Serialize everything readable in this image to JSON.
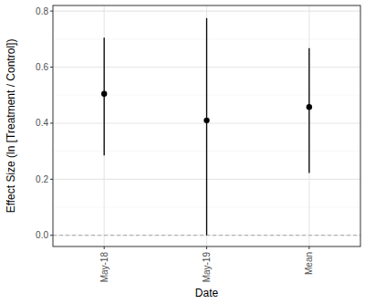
{
  "chart_data": {
    "type": "scatter",
    "x_label": "Date",
    "y_label": "Effect Size (ln [Treatment / Control])",
    "categories": [
      "May-18",
      "May-19",
      "Mean"
    ],
    "values": [
      0.505,
      0.41,
      0.458
    ],
    "lower": [
      0.285,
      0.0,
      0.222
    ],
    "upper": [
      0.705,
      0.775,
      0.668
    ],
    "reference_line": 0,
    "color": "#000000",
    "marker": "circle",
    "ylim": [
      -0.04,
      0.82
    ],
    "yticks": [
      {
        "value": 0,
        "label": "0.0"
      },
      0.2,
      0.4,
      0.6,
      0.8
    ],
    "grid": true
  }
}
